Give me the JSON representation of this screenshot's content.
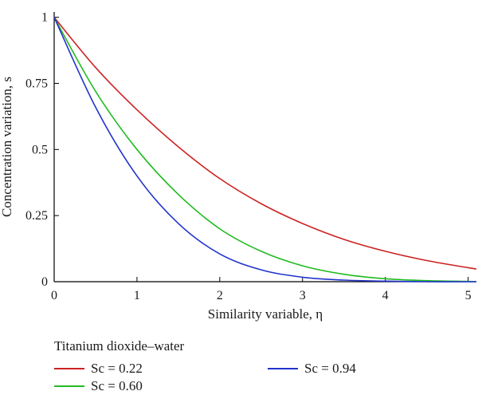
{
  "chart_data": {
    "type": "line",
    "xlabel": "Similarity variable, η",
    "ylabel": "Concentration variation, s",
    "xlim": [
      0,
      5.1
    ],
    "ylim": [
      0,
      1.02
    ],
    "xticks": [
      0,
      1,
      2,
      3,
      4,
      5
    ],
    "xtick_labels": [
      "0",
      "1",
      "2",
      "3",
      "4",
      "5"
    ],
    "yticks": [
      0,
      0.25,
      0.5,
      0.75,
      1
    ],
    "ytick_labels": [
      "0",
      "0.25",
      "0.5",
      "0.75",
      "1"
    ],
    "grid": false,
    "legend_title": "Titanium dioxide–water",
    "legend_position": "bottom",
    "series": [
      {
        "name": "Sc = 0.22",
        "color": "#cc2222",
        "x": [
          0,
          0.5,
          1,
          1.5,
          2,
          2.5,
          3,
          3.5,
          4,
          4.5,
          5,
          5.1
        ],
        "y": [
          1,
          0.81,
          0.65,
          0.51,
          0.39,
          0.295,
          0.22,
          0.16,
          0.115,
          0.08,
          0.053,
          0.048
        ]
      },
      {
        "name": "Sc = 0.60",
        "color": "#22bb22",
        "x": [
          0,
          0.5,
          1,
          1.5,
          2,
          2.5,
          3,
          3.5,
          4,
          4.5,
          5,
          5.1
        ],
        "y": [
          1,
          0.72,
          0.5,
          0.33,
          0.2,
          0.115,
          0.06,
          0.028,
          0.011,
          0.004,
          0.001,
          0.0
        ]
      },
      {
        "name": "Sc = 0.94",
        "color": "#2233cc",
        "x": [
          0,
          0.5,
          1,
          1.5,
          2,
          2.5,
          3,
          3.5,
          4,
          4.5,
          5,
          5.1
        ],
        "y": [
          1,
          0.66,
          0.4,
          0.22,
          0.105,
          0.045,
          0.017,
          0.006,
          0.002,
          0.0,
          0.0,
          0.0
        ]
      }
    ]
  }
}
